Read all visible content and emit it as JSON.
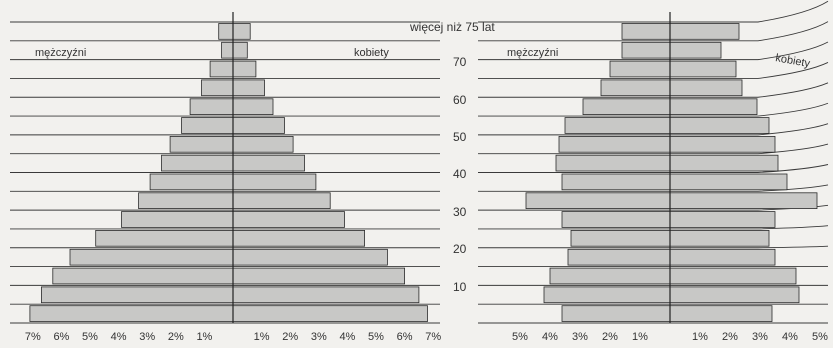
{
  "chart_data": [
    {
      "type": "bar",
      "orientation": "horizontal",
      "subtype": "population-pyramid",
      "age_groups": [
        "0-4",
        "5-9",
        "10-14",
        "15-19",
        "20-24",
        "25-29",
        "30-34",
        "35-39",
        "40-44",
        "45-49",
        "50-54",
        "55-59",
        "60-64",
        "65-69",
        "70-74",
        "75+"
      ],
      "series": [
        {
          "name": "mężczyźni",
          "side": "left",
          "values": [
            7.1,
            6.7,
            6.3,
            5.7,
            4.8,
            3.9,
            3.3,
            2.9,
            2.5,
            2.2,
            1.8,
            1.5,
            1.1,
            0.8,
            0.4,
            0.5
          ]
        },
        {
          "name": "kobiety",
          "side": "right",
          "values": [
            6.8,
            6.5,
            6.0,
            5.4,
            4.6,
            3.9,
            3.4,
            2.9,
            2.5,
            2.1,
            1.8,
            1.4,
            1.1,
            0.8,
            0.5,
            0.6
          ]
        }
      ],
      "xlim": [
        -7,
        7
      ],
      "x_ticks_left": [
        "7%",
        "6%",
        "5%",
        "4%",
        "3%",
        "2%",
        "1%"
      ],
      "x_ticks_right": [
        "1%",
        "2%",
        "3%",
        "4%",
        "5%",
        "6%",
        "7%"
      ],
      "grid": true
    },
    {
      "type": "bar",
      "orientation": "horizontal",
      "subtype": "population-pyramid",
      "age_groups": [
        "0-4",
        "5-9",
        "10-14",
        "15-19",
        "20-24",
        "25-29",
        "30-34",
        "35-39",
        "40-44",
        "45-49",
        "50-54",
        "55-59",
        "60-64",
        "65-69",
        "70-74",
        "75+"
      ],
      "series": [
        {
          "name": "mężczyźni",
          "side": "left",
          "values": [
            3.6,
            4.2,
            4.0,
            3.4,
            3.3,
            3.6,
            4.8,
            3.6,
            3.8,
            3.7,
            3.5,
            2.9,
            2.3,
            2.0,
            1.6,
            1.6
          ]
        },
        {
          "name": "kobiety",
          "side": "right",
          "values": [
            3.4,
            4.3,
            4.2,
            3.5,
            3.3,
            3.5,
            4.9,
            3.9,
            3.6,
            3.5,
            3.3,
            2.9,
            2.4,
            2.2,
            1.7,
            2.3
          ]
        }
      ],
      "xlim": [
        -5,
        5
      ],
      "x_ticks_left": [
        "5%",
        "4%",
        "3%",
        "2%",
        "1%"
      ],
      "x_ticks_right": [
        "1%",
        "2%",
        "3%",
        "4%",
        "5%"
      ],
      "grid": true
    }
  ],
  "labels": {
    "top_label": "więcej niż 75 lat",
    "age_ticks": [
      "70",
      "60",
      "50",
      "40",
      "30",
      "20",
      "10"
    ],
    "left_men": "mężczyźni",
    "left_women": "kobiety",
    "right_men": "mężczyźni",
    "right_women": "kobiety"
  },
  "colors": {
    "bar_fill": "#c8c8c6",
    "bar_stroke": "#2b2b2b",
    "grid": "#3a3a3a",
    "background": "#f2f1ee"
  }
}
